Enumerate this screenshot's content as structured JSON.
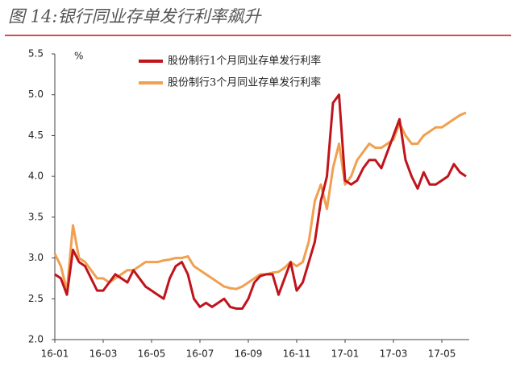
{
  "chart_data": {
    "type": "line",
    "title": "图 14:银行同业存单发行利率飙升",
    "y_unit": "%",
    "categories": [
      "16-01",
      null,
      null,
      null,
      null,
      null,
      null,
      null,
      "16-03",
      null,
      null,
      null,
      null,
      null,
      null,
      null,
      "16-05",
      null,
      null,
      null,
      null,
      null,
      null,
      null,
      "16-07",
      null,
      null,
      null,
      null,
      null,
      null,
      null,
      "16-09",
      null,
      null,
      null,
      null,
      null,
      null,
      null,
      "16-11",
      null,
      null,
      null,
      null,
      null,
      null,
      null,
      "17-01",
      null,
      null,
      null,
      null,
      null,
      null,
      null,
      "17-03",
      null,
      null,
      null,
      null,
      null,
      null,
      null,
      "17-05",
      null,
      null,
      null,
      null
    ],
    "series": [
      {
        "name": "股份制行1个月同业存单发行利率",
        "color": "#c0141c",
        "values": [
          2.8,
          2.75,
          2.55,
          3.1,
          2.95,
          2.9,
          2.75,
          2.6,
          2.6,
          2.7,
          2.8,
          2.75,
          2.7,
          2.85,
          2.75,
          2.65,
          2.6,
          2.55,
          2.5,
          2.75,
          2.9,
          2.95,
          2.8,
          2.5,
          2.4,
          2.45,
          2.4,
          2.45,
          2.5,
          2.4,
          2.38,
          2.38,
          2.5,
          2.7,
          2.78,
          2.8,
          2.8,
          2.55,
          2.75,
          2.95,
          2.6,
          2.7,
          2.95,
          3.2,
          3.7,
          4.0,
          4.9,
          5.0,
          3.95,
          3.9,
          3.95,
          4.1,
          4.2,
          4.2,
          4.1,
          4.3,
          4.5,
          4.7,
          4.2,
          4.0,
          3.85,
          4.05,
          3.9,
          3.9,
          3.95,
          4.0,
          4.15,
          4.05,
          4.0
        ]
      },
      {
        "name": "股份制行3个月同业存单发行利率",
        "color": "#f0a050",
        "values": [
          3.05,
          2.9,
          2.6,
          3.4,
          3.0,
          2.95,
          2.85,
          2.75,
          2.75,
          2.7,
          2.75,
          2.8,
          2.85,
          2.85,
          2.9,
          2.95,
          2.95,
          2.95,
          2.97,
          2.98,
          3.0,
          3.0,
          3.02,
          2.9,
          2.85,
          2.8,
          2.75,
          2.7,
          2.65,
          2.63,
          2.62,
          2.65,
          2.7,
          2.75,
          2.8,
          2.8,
          2.82,
          2.83,
          2.88,
          2.95,
          2.9,
          2.95,
          3.2,
          3.7,
          3.9,
          3.6,
          4.1,
          4.4,
          3.9,
          4.0,
          4.2,
          4.3,
          4.4,
          4.35,
          4.35,
          4.4,
          4.45,
          4.65,
          4.5,
          4.4,
          4.4,
          4.5,
          4.55,
          4.6,
          4.6,
          4.65,
          4.7,
          4.75,
          4.78
        ]
      }
    ],
    "ylim": [
      2,
      5.5
    ],
    "yticks": [
      {
        "value": 2,
        "label": "2.0"
      },
      {
        "value": 2.5,
        "label": "2.5"
      },
      {
        "value": 3,
        "label": "3.0"
      },
      {
        "value": 3.5,
        "label": "3.5"
      },
      {
        "value": 4,
        "label": "4.0"
      },
      {
        "value": 4.5,
        "label": "4.5"
      },
      {
        "value": 5,
        "label": "5.0"
      },
      {
        "value": 5.5,
        "label": "5.5"
      }
    ],
    "grid": false
  }
}
